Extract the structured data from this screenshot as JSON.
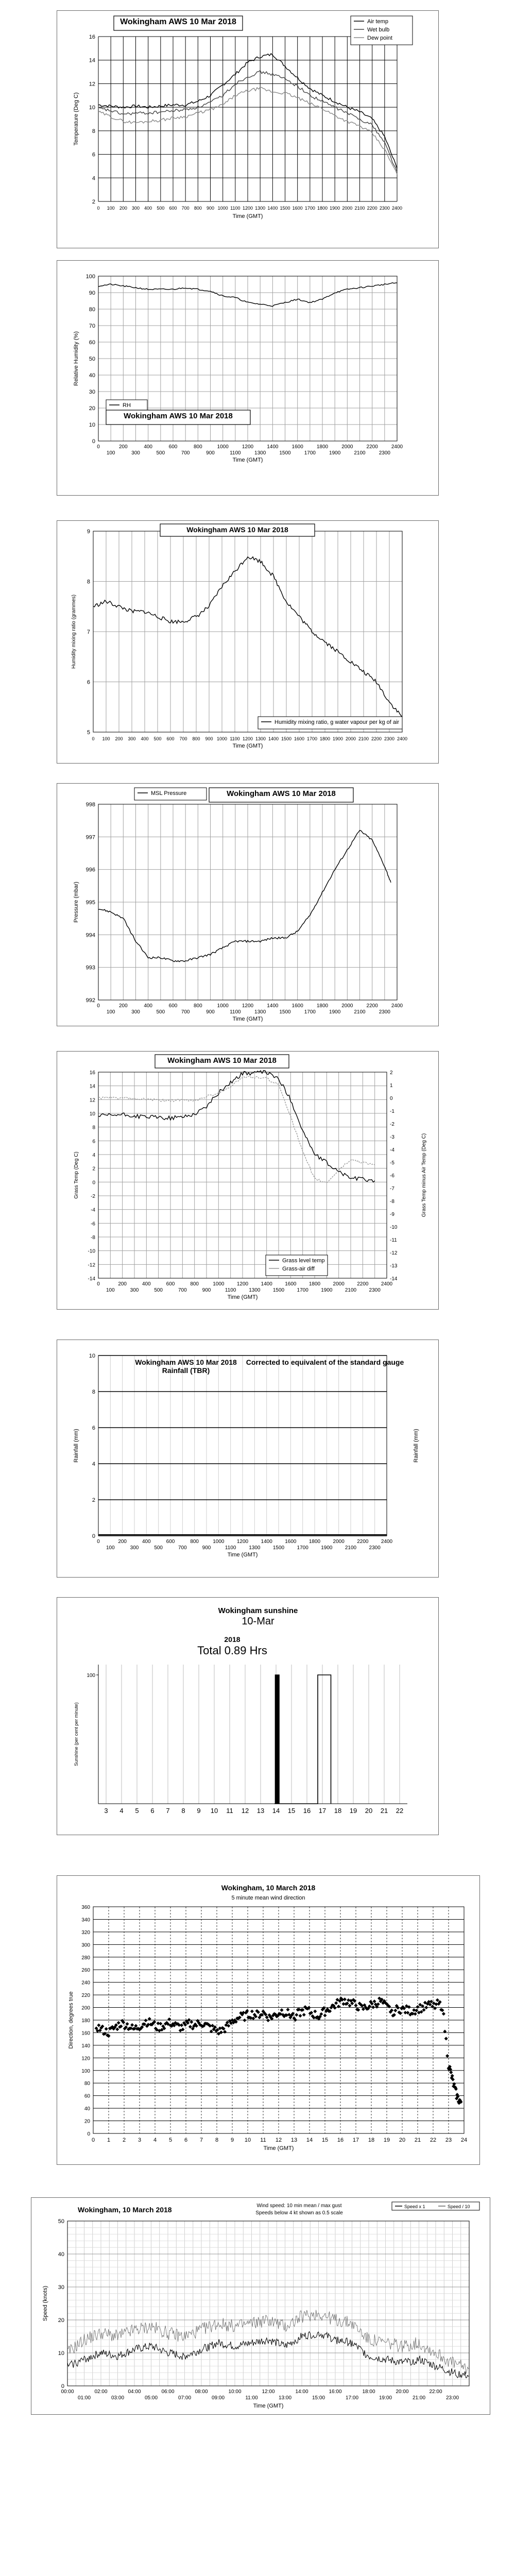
{
  "chart_data": [
    {
      "type": "line",
      "title": "Wokingham AWS 10 Mar 2018",
      "xlabel": "Time (GMT)",
      "ylabel": "Temperature (Deg C)",
      "ylim": [
        2,
        16
      ],
      "yticks": [
        2,
        4,
        6,
        8,
        10,
        12,
        14,
        16
      ],
      "xticks": [
        "0",
        "100",
        "200",
        "300",
        "400",
        "500",
        "600",
        "700",
        "800",
        "900",
        "1000",
        "1100",
        "1200",
        "1300",
        "1400",
        "1500",
        "1600",
        "1700",
        "1800",
        "1900",
        "2000",
        "2100",
        "2200",
        "2300",
        "2400"
      ],
      "legend": "top-right",
      "x": [
        0,
        100,
        200,
        300,
        400,
        500,
        600,
        700,
        800,
        900,
        1000,
        1100,
        1200,
        1300,
        1400,
        1500,
        1600,
        1700,
        1800,
        1900,
        2000,
        2100,
        2200,
        2300,
        2400
      ],
      "series": [
        {
          "name": "Air temp",
          "color": "#000000",
          "values": [
            10.2,
            10.1,
            10.0,
            10.1,
            10.0,
            10.1,
            10.2,
            10.2,
            10.5,
            11.0,
            11.9,
            12.8,
            13.8,
            14.3,
            14.5,
            13.5,
            12.5,
            11.6,
            11.0,
            10.5,
            10.0,
            9.6,
            9.0,
            7.5,
            4.8
          ]
        },
        {
          "name": "Wet bulb",
          "color": "#444444",
          "values": [
            9.9,
            9.7,
            9.4,
            9.5,
            9.5,
            9.6,
            9.7,
            9.8,
            10.0,
            10.4,
            11.0,
            12.0,
            12.6,
            13.0,
            12.8,
            12.4,
            11.8,
            11.0,
            10.5,
            10.0,
            9.5,
            9.0,
            8.5,
            7.0,
            4.5
          ]
        },
        {
          "name": "Dew point",
          "color": "#888888",
          "values": [
            9.6,
            9.2,
            8.8,
            8.7,
            8.8,
            8.9,
            9.1,
            9.2,
            9.5,
            9.8,
            10.2,
            11.0,
            11.4,
            11.6,
            11.3,
            11.2,
            10.8,
            10.3,
            9.9,
            9.3,
            8.8,
            8.4,
            7.8,
            6.4,
            4.3
          ]
        }
      ]
    },
    {
      "type": "line",
      "title": "Wokingham AWS 10 Mar 2018",
      "xlabel": "Time (GMT)",
      "ylabel": "Relative Humidity (%)",
      "ylim": [
        0,
        100
      ],
      "yticks": [
        0,
        10,
        20,
        30,
        40,
        50,
        60,
        70,
        80,
        90,
        100
      ],
      "xticks_major": [
        "0",
        "200",
        "400",
        "600",
        "800",
        "1000",
        "1200",
        "1400",
        "1600",
        "1800",
        "2000",
        "2200",
        "2400"
      ],
      "xticks_minor": [
        "100",
        "300",
        "500",
        "700",
        "900",
        "1100",
        "1300",
        "1500",
        "1700",
        "1900",
        "2100",
        "2300"
      ],
      "legend": "bottom-left",
      "x": [
        0,
        100,
        200,
        300,
        400,
        500,
        600,
        700,
        800,
        900,
        1000,
        1100,
        1200,
        1300,
        1400,
        1500,
        1600,
        1700,
        1800,
        1900,
        2000,
        2100,
        2200,
        2300,
        2400
      ],
      "series": [
        {
          "name": "RH",
          "color": "#000000",
          "values": [
            94,
            95,
            94,
            93,
            92,
            92,
            92,
            93,
            92,
            91,
            88,
            87,
            84,
            83,
            82,
            84,
            86,
            84,
            86,
            90,
            92,
            93,
            94,
            95,
            96
          ]
        }
      ]
    },
    {
      "type": "line",
      "title": "Wokingham AWS 10 Mar 2018",
      "xlabel": "Time (GMT)",
      "ylabel": "Humidity mixing ratio (grammes)",
      "ylim": [
        5,
        9
      ],
      "yticks": [
        5,
        6,
        7,
        8,
        9
      ],
      "xticks": [
        "0",
        "100",
        "200",
        "300",
        "400",
        "500",
        "600",
        "700",
        "800",
        "900",
        "1000",
        "1100",
        "1200",
        "1300",
        "1400",
        "1500",
        "1600",
        "1700",
        "1800",
        "1900",
        "2000",
        "2100",
        "2200",
        "2300",
        "2400"
      ],
      "legend": "bottom-right",
      "x": [
        0,
        100,
        200,
        300,
        400,
        500,
        600,
        700,
        800,
        900,
        1000,
        1100,
        1200,
        1300,
        1400,
        1500,
        1600,
        1700,
        1800,
        1900,
        2000,
        2100,
        2200,
        2300,
        2400
      ],
      "series": [
        {
          "name": "Humidity mixing ratio, g water vapour per kg of air",
          "color": "#000000",
          "values": [
            7.5,
            7.6,
            7.5,
            7.4,
            7.4,
            7.3,
            7.2,
            7.2,
            7.3,
            7.5,
            7.9,
            8.2,
            8.5,
            8.4,
            8.1,
            7.6,
            7.3,
            7.0,
            6.8,
            6.6,
            6.4,
            6.2,
            6.0,
            5.6,
            5.3
          ]
        }
      ]
    },
    {
      "type": "line",
      "title": "Wokingham AWS 10 Mar 2018",
      "xlabel": "Time (GMT)",
      "ylabel": "Pressure (mbar)",
      "ylim": [
        992,
        998
      ],
      "yticks": [
        992,
        993,
        994,
        995,
        996,
        997,
        998
      ],
      "xticks_major": [
        "0",
        "200",
        "400",
        "600",
        "800",
        "1000",
        "1200",
        "1400",
        "1600",
        "1800",
        "2000",
        "2200",
        "2400"
      ],
      "xticks_minor": [
        "100",
        "300",
        "500",
        "700",
        "900",
        "1100",
        "1300",
        "1500",
        "1700",
        "1900",
        "2100",
        "2300"
      ],
      "legend": "top-left",
      "x": [
        0,
        100,
        200,
        300,
        400,
        500,
        600,
        700,
        800,
        900,
        1000,
        1100,
        1200,
        1300,
        1400,
        1500,
        1600,
        1700,
        1800,
        1900,
        2000,
        2100,
        2200,
        2300,
        2350
      ],
      "series": [
        {
          "name": "MSL Pressure",
          "color": "#000000",
          "values": [
            994.8,
            994.7,
            994.5,
            993.8,
            993.3,
            993.3,
            993.2,
            993.2,
            993.3,
            993.4,
            993.6,
            993.8,
            993.8,
            993.8,
            993.9,
            993.9,
            994.1,
            994.6,
            995.3,
            996.0,
            996.6,
            997.2,
            996.9,
            996.1,
            995.6
          ]
        }
      ]
    },
    {
      "type": "line",
      "title": "Wokingham AWS 10 Mar 2018",
      "xlabel": "Time (GMT)",
      "ylabel": "Grass Temp (Deg C)",
      "y2label": "Grass Temp minus Air Temp (Deg C)",
      "ylim": [
        -14,
        16
      ],
      "y2lim": [
        -14,
        2
      ],
      "yticks": [
        -14,
        -12,
        -10,
        -8,
        -6,
        -4,
        -2,
        0,
        2,
        4,
        6,
        8,
        10,
        12,
        14,
        16
      ],
      "y2ticks": [
        -14,
        -13,
        -12,
        -11,
        -10,
        -9,
        -8,
        -7,
        -6,
        -5,
        -4,
        -3,
        -2,
        -1,
        0,
        1,
        2
      ],
      "xticks_major": [
        "0",
        "200",
        "400",
        "600",
        "800",
        "1000",
        "1200",
        "1400",
        "1600",
        "1800",
        "2000",
        "2200",
        "2400"
      ],
      "xticks_minor": [
        "100",
        "300",
        "500",
        "700",
        "900",
        "1100",
        "1300",
        "1500",
        "1700",
        "1900",
        "2100",
        "2300"
      ],
      "legend": "bottom-right",
      "x": [
        0,
        100,
        200,
        300,
        400,
        500,
        600,
        700,
        800,
        900,
        1000,
        1100,
        1200,
        1300,
        1400,
        1500,
        1600,
        1700,
        1800,
        1900,
        2000,
        2100,
        2200,
        2300
      ],
      "series": [
        {
          "name": "Grass level temp",
          "color": "#000000",
          "values": [
            9.6,
            9.7,
            9.8,
            9.6,
            9.5,
            9.4,
            9.3,
            9.5,
            9.9,
            11.0,
            13.0,
            14.5,
            15.8,
            15.9,
            16.0,
            15.0,
            12.0,
            7.5,
            4.0,
            2.8,
            1.5,
            0.6,
            0.4,
            0.2
          ]
        },
        {
          "name": "Grass-air diff",
          "color": "#999999",
          "values": [
            0.0,
            0.0,
            0.0,
            -0.1,
            -0.1,
            -0.2,
            -0.2,
            -0.2,
            -0.2,
            0.1,
            0.4,
            0.9,
            1.6,
            1.6,
            1.5,
            1.0,
            -1.4,
            -4.2,
            -6.3,
            -6.6,
            -5.6,
            -4.8,
            -5.0,
            -5.2
          ]
        }
      ]
    },
    {
      "type": "bar",
      "title": "Wokingham AWS 10 Mar 2018",
      "subtitle": "Rainfall (TBR)",
      "annotation": "Corrected to equivalent of the standard gauge",
      "xlabel": "Time (GMT)",
      "ylabel": "Rainfall (mm)",
      "y2label": "Rainfall (mm)",
      "ylim": [
        0,
        10
      ],
      "yticks": [
        0,
        2,
        4,
        6,
        8,
        10
      ],
      "xticks_major": [
        "0",
        "200",
        "400",
        "600",
        "800",
        "1000",
        "1200",
        "1400",
        "1600",
        "1800",
        "2000",
        "2200",
        "2400"
      ],
      "xticks_minor": [
        "100",
        "300",
        "500",
        "700",
        "900",
        "1100",
        "1300",
        "1500",
        "1700",
        "1900",
        "2100",
        "2300"
      ],
      "values": [],
      "total_mm": 0
    },
    {
      "type": "line",
      "title": "Wokingham sunshine",
      "date": "10-Mar",
      "year": "2018",
      "total": "Total 0.89 Hrs",
      "ylabel": "Sunshine (per cent per minute)",
      "ylim": [
        0,
        100
      ],
      "yticks": [
        0,
        100
      ],
      "xticks": [
        "3",
        "4",
        "5",
        "6",
        "7",
        "8",
        "9",
        "10",
        "11",
        "12",
        "13",
        "14",
        "15",
        "16",
        "17",
        "18",
        "19",
        "20",
        "21",
        "22"
      ],
      "x": [
        13.9,
        13.95,
        14.0,
        14.05,
        14.08,
        14.1,
        14.13,
        14.16,
        14.2,
        16.6,
        16.7,
        17.5,
        17.55
      ],
      "values": [
        0,
        100,
        0,
        100,
        0,
        100,
        0,
        100,
        0,
        0,
        100,
        100,
        0
      ]
    },
    {
      "type": "scatter",
      "title": "Wokingham,  10 March 2018",
      "subtitle": "5 minute mean wind direction",
      "xlabel": "Time (GMT)",
      "ylabel": "Direction, degrees true",
      "ylim": [
        0,
        360
      ],
      "yticks": [
        0,
        20,
        40,
        60,
        80,
        100,
        120,
        140,
        160,
        180,
        200,
        220,
        240,
        260,
        280,
        300,
        320,
        340,
        360
      ],
      "xlim": [
        0,
        24
      ],
      "xticks": [
        "0",
        "1",
        "2",
        "3",
        "4",
        "5",
        "6",
        "7",
        "8",
        "9",
        "10",
        "11",
        "12",
        "13",
        "14",
        "15",
        "16",
        "17",
        "18",
        "19",
        "20",
        "21",
        "22",
        "23",
        "24"
      ],
      "x": [
        0.2,
        0.6,
        1.0,
        1.4,
        1.8,
        2.2,
        2.6,
        3.0,
        3.4,
        3.8,
        4.2,
        4.6,
        5.0,
        5.4,
        5.8,
        6.2,
        6.6,
        7.0,
        7.4,
        7.8,
        8.2,
        8.6,
        9.0,
        9.4,
        9.8,
        10.2,
        10.6,
        11.0,
        11.4,
        11.8,
        12.2,
        12.6,
        13.0,
        13.4,
        13.8,
        14.2,
        14.6,
        15.0,
        15.4,
        15.8,
        16.2,
        16.6,
        17.0,
        17.4,
        17.8,
        18.2,
        18.6,
        19.0,
        19.4,
        19.8,
        20.2,
        20.6,
        21.0,
        21.4,
        21.8,
        22.2,
        22.6,
        23.0,
        23.2,
        23.4,
        23.6,
        23.8
      ],
      "values": [
        170,
        164,
        160,
        168,
        175,
        172,
        165,
        170,
        178,
        174,
        168,
        172,
        176,
        170,
        168,
        174,
        172,
        176,
        170,
        165,
        162,
        168,
        178,
        184,
        186,
        190,
        188,
        192,
        184,
        188,
        194,
        190,
        186,
        192,
        196,
        190,
        186,
        194,
        200,
        206,
        212,
        208,
        204,
        198,
        202,
        206,
        210,
        200,
        194,
        198,
        196,
        194,
        198,
        200,
        204,
        206,
        202,
        110,
        90,
        70,
        55,
        50
      ]
    },
    {
      "type": "line",
      "title": "Wokingham,  10 March 2018",
      "subtitle": "Wind speed: 10 min mean / max gust",
      "note": "Speeds below 4 kt shown as 0.5 scale",
      "xlabel": "Time (GMT)",
      "ylabel": "Speed (knots)",
      "ylim": [
        0,
        50
      ],
      "yticks": [
        0,
        10,
        20,
        30,
        40,
        50
      ],
      "xticks_major": [
        "00:00",
        "02:00",
        "04:00",
        "06:00",
        "08:00",
        "10:00",
        "12:00",
        "14:00",
        "16:00",
        "18:00",
        "20:00",
        "22:00"
      ],
      "xticks_minor": [
        "01:00",
        "03:00",
        "05:00",
        "07:00",
        "09:00",
        "11:00",
        "13:00",
        "15:00",
        "17:00",
        "19:00",
        "21:00",
        "23:00"
      ],
      "legend": "top-right",
      "legend_entries": [
        "Speed x 1",
        "Speed / 10"
      ],
      "x": [
        0,
        1,
        2,
        3,
        4,
        5,
        6,
        7,
        8,
        9,
        10,
        11,
        12,
        13,
        14,
        15,
        16,
        17,
        18,
        19,
        20,
        21,
        22,
        23,
        24
      ],
      "series": [
        {
          "name": "Speed x 1",
          "color": "#000000",
          "values": [
            6,
            8,
            10,
            9,
            11,
            12,
            10,
            9,
            11,
            13,
            12,
            13,
            14,
            12,
            15,
            16,
            14,
            13,
            9,
            8,
            7,
            8,
            6,
            4,
            3
          ]
        },
        {
          "name": "Speed / 10",
          "color": "#666666",
          "values": [
            10,
            14,
            16,
            15,
            17,
            18,
            16,
            15,
            17,
            19,
            18,
            19,
            20,
            18,
            21,
            22,
            20,
            19,
            14,
            13,
            12,
            13,
            10,
            7,
            5
          ]
        }
      ]
    }
  ]
}
